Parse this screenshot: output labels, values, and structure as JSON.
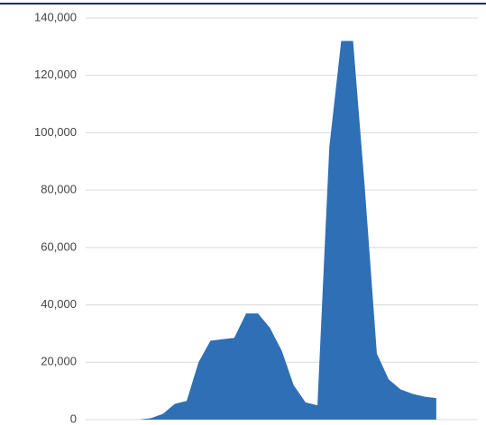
{
  "chart_data": {
    "type": "area",
    "categories": [
      null,
      null,
      null,
      null,
      null,
      null,
      null,
      null,
      null,
      null,
      null,
      null,
      null,
      null,
      null,
      null,
      null,
      null,
      null,
      null,
      null,
      null,
      null,
      null,
      null,
      null,
      null,
      null,
      null,
      null,
      null,
      null,
      null
    ],
    "values": [
      0,
      0,
      0,
      0,
      0,
      500,
      2000,
      5500,
      6500,
      20000,
      27500,
      28000,
      28500,
      37000,
      37000,
      32000,
      24000,
      12000,
      6000,
      5000,
      95000,
      132000,
      132000,
      80000,
      23000,
      14000,
      10500,
      9000,
      8000,
      7500,
      null,
      null,
      null
    ],
    "color": "#2f6fb5",
    "ylim": [
      0,
      140000
    ],
    "yticks": [
      0,
      {
        "value": 20000,
        "label": "20,000"
      },
      {
        "value": 40000,
        "label": "40,000"
      },
      {
        "value": 60000,
        "label": "60,000"
      },
      {
        "value": 80000,
        "label": "80,000"
      },
      {
        "value": 100000,
        "label": "100,000"
      },
      {
        "value": 120000,
        "label": "120,000"
      },
      {
        "value": 140000,
        "label": "140,000"
      }
    ],
    "grid": true
  }
}
